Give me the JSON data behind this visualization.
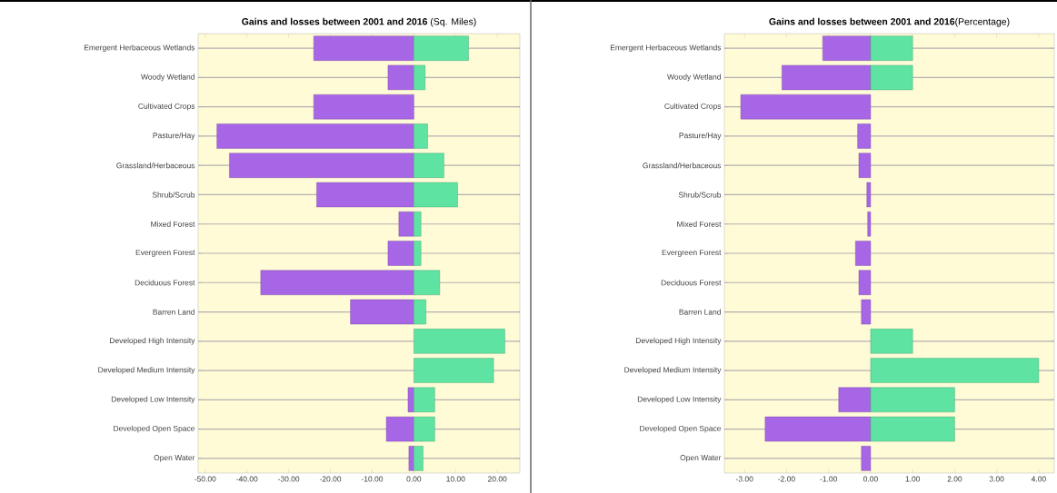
{
  "chart_data": [
    {
      "type": "bar",
      "orientation": "horizontal",
      "stacked": true,
      "title": "**Gains and losses between 2001 and 2016** (Sq. Miles)",
      "categories": [
        "Emergent Herbaceous Wetlands",
        "Woody Wetland",
        "Cultivated Crops",
        "Pasture/Hay",
        "Grassland/Herbaceous",
        "Shrub/Scrub",
        "Mixed Forest",
        "Evergreen Forest",
        "Deciduous Forest",
        "Barren Land",
        "Developed High Intensity",
        "Developed Medium Intensity",
        "Developed Low Intensity",
        "Developed Open Space",
        "Open Water"
      ],
      "series": [
        {
          "color": "#a766e6",
          "values": [
            -24.0,
            -6.2,
            -24.0,
            -47.2,
            -44.2,
            -23.3,
            -3.6,
            -6.2,
            -36.7,
            -15.2,
            null,
            null,
            -1.4,
            -6.6,
            -1.2
          ]
        },
        {
          "color": "#5ee3a2",
          "values": [
            13.1,
            2.7,
            null,
            3.3,
            7.2,
            10.5,
            1.7,
            1.7,
            6.2,
            2.9,
            21.8,
            19.1,
            5.0,
            5.0,
            2.2
          ]
        }
      ],
      "xlim": [
        -51.7,
        25.4
      ],
      "xticks": [
        {
          "value": -50,
          "label": "-50.00"
        },
        {
          "value": -40,
          "label": "-40.00"
        },
        {
          "value": -30,
          "label": "-30.00"
        },
        {
          "value": -20,
          "label": "-20.00"
        },
        {
          "value": -10,
          "label": "-10.00"
        },
        {
          "value": 0,
          "label": "0.00"
        },
        {
          "value": 10,
          "label": "10.00"
        },
        {
          "value": 20,
          "label": "20.00"
        }
      ],
      "grid": "y"
    },
    {
      "type": "bar",
      "orientation": "horizontal",
      "stacked": true,
      "title": "**Gains and losses between 2001 and 2016**(Percentage)",
      "categories": [
        "Emergent Herbaceous Wetlands",
        "Woody Wetland",
        "Cultivated Crops",
        "Pasture/Hay",
        "Grassland/Herbaceous",
        "Shrub/Scrub",
        "Mixed Forest",
        "Evergreen Forest",
        "Deciduous Forest",
        "Barren Land",
        "Developed High Intensity",
        "Developed Medium Intensity",
        "Developed Low Intensity",
        "Developed Open Space",
        "Open Water"
      ],
      "series": [
        {
          "color": "#a766e6",
          "values": [
            -1.14,
            -2.11,
            -3.09,
            -0.31,
            -0.28,
            -0.09,
            -0.07,
            -0.36,
            -0.28,
            -0.22,
            null,
            null,
            -0.76,
            -2.51,
            -0.22
          ]
        },
        {
          "color": "#5ee3a2",
          "values": [
            1.0,
            1.0,
            null,
            null,
            null,
            null,
            null,
            null,
            null,
            null,
            1.0,
            4.0,
            2.0,
            2.0,
            null
          ]
        }
      ],
      "xlim": [
        -3.48,
        4.37
      ],
      "xticks": [
        {
          "value": -3,
          "label": "-3.00"
        },
        {
          "value": -2,
          "label": "-2.00"
        },
        {
          "value": -1,
          "label": "-1.00"
        },
        {
          "value": 0,
          "label": "0.00"
        },
        {
          "value": 1,
          "label": "1.00"
        },
        {
          "value": 2,
          "label": "2.00"
        },
        {
          "value": 3,
          "label": "3.00"
        },
        {
          "value": 4,
          "label": "4.00"
        }
      ],
      "grid": "y"
    }
  ]
}
